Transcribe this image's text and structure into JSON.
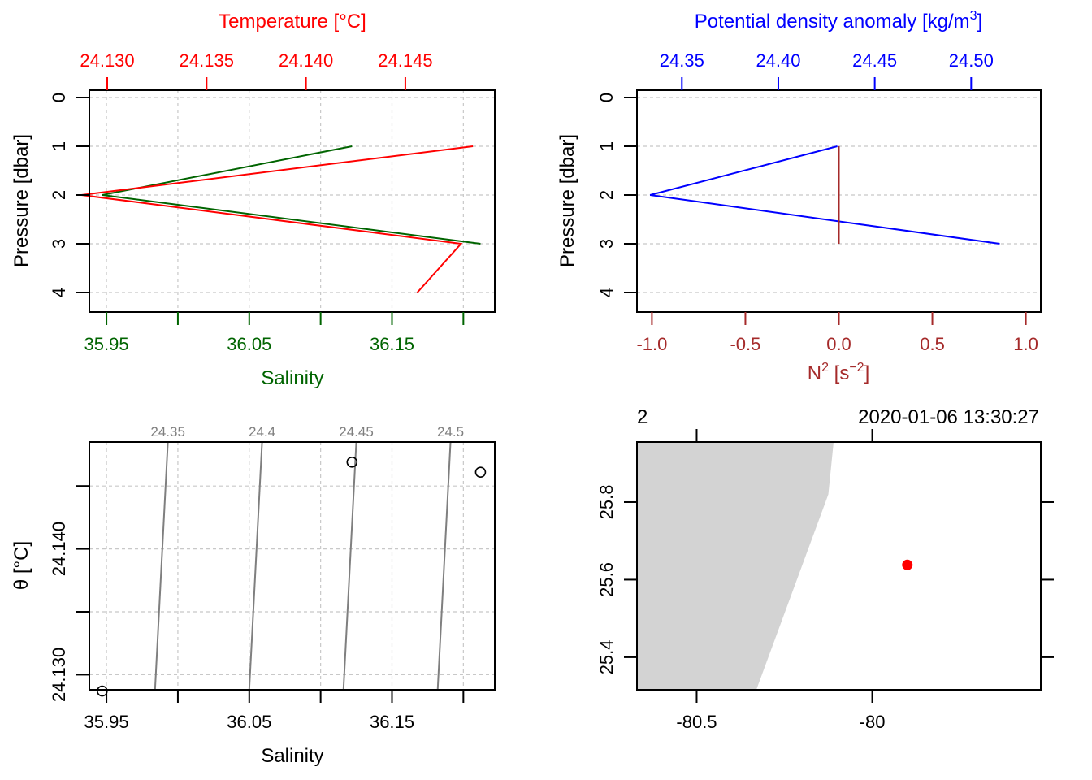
{
  "chart_data": [
    {
      "type": "line",
      "panel": "profile-temperature-salinity",
      "yaxis": {
        "label": "Pressure [dbar]",
        "ticks": [
          "0",
          "1",
          "2",
          "3",
          "4"
        ],
        "range": [
          4.4,
          -0.15
        ],
        "inverted": true
      },
      "top_axis": {
        "label": "Temperature [°C]",
        "ticks": [
          "24.130",
          "24.135",
          "24.140",
          "24.145"
        ],
        "range": [
          24.1291,
          24.1495
        ],
        "color": "#ff0000"
      },
      "bottom_axis": {
        "label": "Salinity",
        "ticks": [
          "35.95",
          "36.05",
          "36.15"
        ],
        "range": [
          35.938,
          36.222
        ],
        "color": "#006400"
      },
      "grid": true,
      "series": [
        {
          "axis": "bottom",
          "color": "#006400",
          "points": [
            {
              "x": 36.122,
              "y": 1
            },
            {
              "x": 35.947,
              "y": 2
            },
            {
              "x": 36.212,
              "y": 3
            }
          ]
        },
        {
          "axis": "top",
          "color": "#ff0000",
          "points": [
            {
              "x": 24.1484,
              "y": 1
            },
            {
              "x": 24.1287,
              "y": 2
            },
            {
              "x": 24.1478,
              "y": 3
            },
            {
              "x": 24.1456,
              "y": 4
            }
          ]
        }
      ]
    },
    {
      "type": "line",
      "panel": "profile-density-n2",
      "yaxis": {
        "label": "Pressure [dbar]",
        "ticks": [
          "0",
          "1",
          "2",
          "3",
          "4"
        ],
        "range": [
          4.4,
          -0.15
        ],
        "inverted": true
      },
      "top_axis": {
        "label": "Potential density anomaly [kg/m",
        "label_sup": "3",
        "label_end": "]",
        "ticks": [
          "24.35",
          "24.40",
          "24.45",
          "24.50"
        ],
        "range": [
          24.3267,
          24.5361
        ],
        "color": "#0000ff"
      },
      "bottom_axis": {
        "label": "N",
        "label_sup": "2",
        "label_mid": " [s",
        "label_sup2": "−2",
        "label_end": "]",
        "ticks": [
          "-1.0",
          "-0.5",
          "0.0",
          "0.5",
          "1.0"
        ],
        "range": [
          -1.08,
          1.08
        ],
        "color": "#a52a2a"
      },
      "grid": true,
      "series": [
        {
          "axis": "top",
          "color": "#0000ff",
          "points": [
            {
              "x": 24.4306,
              "y": 1
            },
            {
              "x": 24.3335,
              "y": 2
            },
            {
              "x": 24.5148,
              "y": 3
            }
          ]
        },
        {
          "axis": "bottom",
          "color": "#a52a2a",
          "points": [
            {
              "x": 0.0,
              "y": 1
            },
            {
              "x": 0.0,
              "y": 3
            }
          ]
        }
      ]
    },
    {
      "type": "scatter",
      "panel": "ts-diagram",
      "xaxis": {
        "label": "Salinity",
        "ticks": [
          "35.95",
          "36.05",
          "36.15"
        ],
        "range": [
          35.938,
          36.222
        ]
      },
      "yaxis": {
        "label": "θ [°C]",
        "ticks": [
          "24.130",
          "24.140"
        ],
        "range": [
          24.1288,
          24.1485
        ]
      },
      "grid": true,
      "isopycnals": [
        {
          "label": "24.35",
          "bottom": 35.984,
          "top": 35.993
        },
        {
          "label": "24.4",
          "bottom": 36.05,
          "top": 36.059
        },
        {
          "label": "24.45",
          "bottom": 36.116,
          "top": 36.125
        },
        {
          "label": "24.5",
          "bottom": 36.182,
          "top": 36.191
        }
      ],
      "points": [
        {
          "x": 35.947,
          "y": 24.1287
        },
        {
          "x": 36.122,
          "y": 24.1469
        },
        {
          "x": 36.212,
          "y": 24.1461
        }
      ]
    },
    {
      "type": "map",
      "panel": "station-map",
      "station_label": "2",
      "timestamp": "2020-01-06 13:30:27",
      "xaxis": {
        "ticks": [
          "-80.5",
          "-80"
        ],
        "range": [
          -80.67,
          -79.52
        ]
      },
      "yaxis": {
        "ticks": [
          "25.4",
          "25.6",
          "25.8"
        ],
        "range": [
          25.316,
          25.955
        ]
      },
      "land_color": "#d3d3d3",
      "coastline": [
        {
          "lon": -80.67,
          "lat": 25.955
        },
        {
          "lon": -80.11,
          "lat": 25.955
        },
        {
          "lon": -80.125,
          "lat": 25.82
        },
        {
          "lon": -80.33,
          "lat": 25.316
        },
        {
          "lon": -80.67,
          "lat": 25.316
        }
      ],
      "station": {
        "lon": -79.9,
        "lat": 25.638,
        "color": "#ff0000"
      }
    }
  ]
}
